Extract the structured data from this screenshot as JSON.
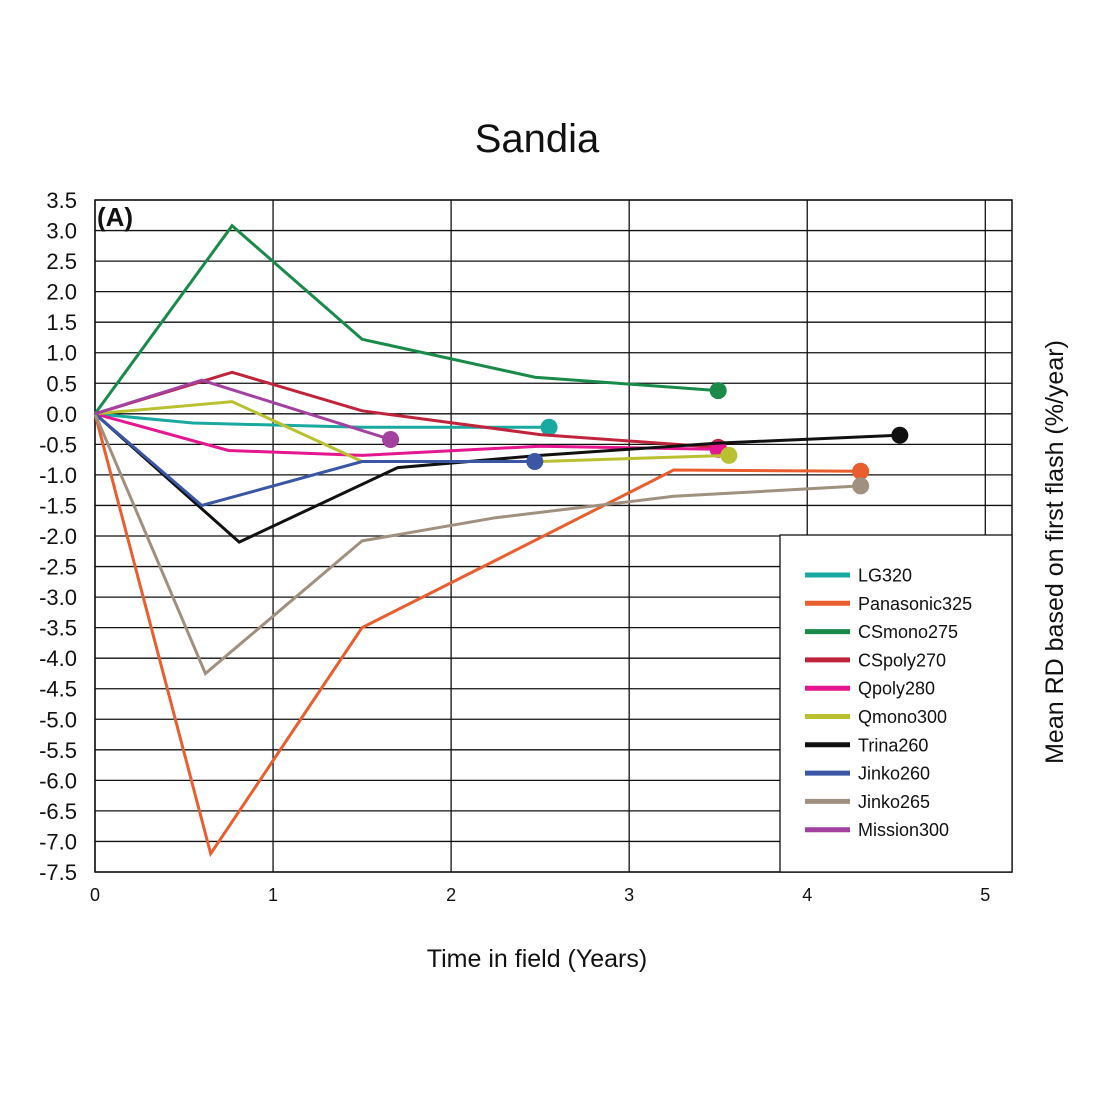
{
  "chart_data": {
    "type": "line",
    "title": "Sandia",
    "panel_label": "(A)",
    "xlabel": "Time in field (Years)",
    "ylabel": "Mean RD based on first flash (%/year)",
    "xlim": [
      0,
      5.15
    ],
    "ylim": [
      -7.5,
      3.5
    ],
    "x_ticks": [
      0,
      1,
      2,
      3,
      4,
      5
    ],
    "x_tick_labels": [
      "0",
      "1",
      "2",
      "3",
      "4",
      "5"
    ],
    "y_ticks": [
      3.5,
      3.0,
      2.5,
      2.0,
      1.5,
      1.0,
      0.5,
      0.0,
      -0.5,
      -1.0,
      -1.5,
      -2.0,
      -2.5,
      -3.0,
      -3.5,
      -4.0,
      -4.5,
      -5.0,
      -5.5,
      -6.0,
      -6.5,
      -7.0,
      -7.5
    ],
    "y_tick_labels": [
      "3.5",
      "3.0",
      "2.5",
      "2.0",
      "1.5",
      "1.0",
      "0.5",
      "0.0",
      "-0.5",
      "-1.0",
      "-1.5",
      "-2.0",
      "-2.5",
      "-3.0",
      "-3.5",
      "-4.0",
      "-4.5",
      "-5.0",
      "-5.5",
      "-6.0",
      "-6.5",
      "-7.0",
      "-7.5"
    ],
    "grid": true,
    "legend_position": "bottom-right",
    "series": [
      {
        "name": "LG320",
        "color": "#1aa9a0",
        "points": [
          [
            0,
            0
          ],
          [
            0.55,
            -0.15
          ],
          [
            1.5,
            -0.22
          ],
          [
            2.55,
            -0.22
          ]
        ]
      },
      {
        "name": "Panasonic325",
        "color": "#ea5d2e",
        "points": [
          [
            0,
            0
          ],
          [
            0.65,
            -7.2
          ],
          [
            1.5,
            -3.5
          ],
          [
            2.25,
            -2.4
          ],
          [
            3.25,
            -0.92
          ],
          [
            4.3,
            -0.94
          ]
        ]
      },
      {
        "name": "CSmono275",
        "color": "#1a8a4b",
        "points": [
          [
            0,
            0
          ],
          [
            0.77,
            3.08
          ],
          [
            1.5,
            1.22
          ],
          [
            2.47,
            0.6
          ],
          [
            3.5,
            0.38
          ]
        ]
      },
      {
        "name": "CSpoly270",
        "color": "#c0243d",
        "points": [
          [
            0,
            0
          ],
          [
            0.77,
            0.68
          ],
          [
            1.5,
            0.05
          ],
          [
            2.5,
            -0.34
          ],
          [
            3.5,
            -0.55
          ]
        ]
      },
      {
        "name": "Qpoly280",
        "color": "#e5168f",
        "points": [
          [
            0,
            0
          ],
          [
            0.75,
            -0.6
          ],
          [
            1.5,
            -0.68
          ],
          [
            2.5,
            -0.53
          ],
          [
            3.5,
            -0.58
          ]
        ]
      },
      {
        "name": "Qmono300",
        "color": "#bac130",
        "points": [
          [
            0,
            0
          ],
          [
            0.77,
            0.2
          ],
          [
            1.5,
            -0.78
          ],
          [
            2.5,
            -0.78
          ],
          [
            3.56,
            -0.68
          ]
        ]
      },
      {
        "name": "Trina260",
        "color": "#111111",
        "points": [
          [
            0,
            0
          ],
          [
            0.81,
            -2.1
          ],
          [
            1.7,
            -0.88
          ],
          [
            2.5,
            -0.68
          ],
          [
            3.5,
            -0.48
          ],
          [
            4.52,
            -0.35
          ]
        ]
      },
      {
        "name": "Jinko260",
        "color": "#3a56a5",
        "points": [
          [
            0,
            0
          ],
          [
            0.6,
            -1.5
          ],
          [
            1.5,
            -0.78
          ],
          [
            2.47,
            -0.78
          ]
        ]
      },
      {
        "name": "Jinko265",
        "color": "#a0907f",
        "points": [
          [
            0,
            0
          ],
          [
            0.62,
            -4.25
          ],
          [
            1.5,
            -2.08
          ],
          [
            2.25,
            -1.7
          ],
          [
            3.25,
            -1.35
          ],
          [
            4.3,
            -1.18
          ]
        ]
      },
      {
        "name": "Mission300",
        "color": "#a2419f",
        "points": [
          [
            0,
            0
          ],
          [
            0.6,
            0.55
          ],
          [
            1.66,
            -0.42
          ]
        ]
      }
    ]
  }
}
